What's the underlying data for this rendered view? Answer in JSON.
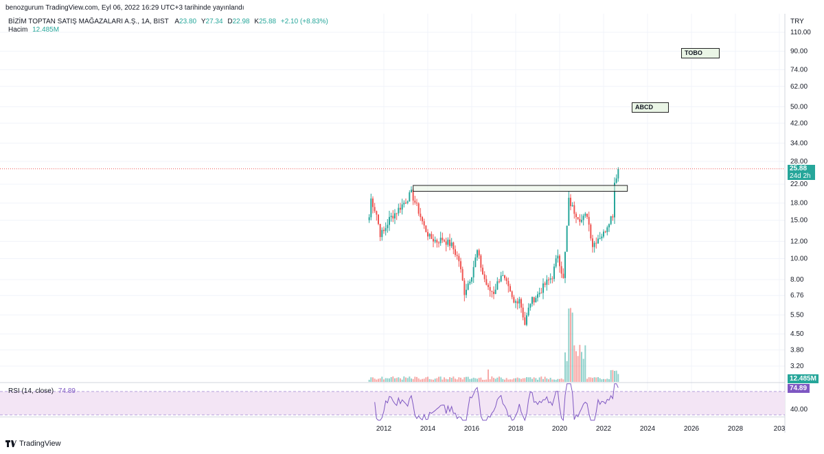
{
  "header": {
    "published": "benozgurum TradingView.com, Eyl 06, 2022 16:29 UTC+3 tarihinde yayınlandı",
    "symbol": "BİZİM TOPTAN SATIŞ MAĞAZALARI A.Ş., 1A, BIST",
    "o_label": "A",
    "o_value": "23.80",
    "h_label": "Y",
    "h_value": "27.34",
    "l_label": "D",
    "l_value": "22.98",
    "c_label": "K",
    "c_value": "25.88",
    "change": "+2.10 (+8.83%)",
    "volume_label": "Hacim",
    "volume_value": "12.485M"
  },
  "price_axis": {
    "currency": "TRY",
    "ticks": [
      "110.00",
      "90.00",
      "74.00",
      "62.00",
      "50.00",
      "42.00",
      "34.00",
      "28.00",
      "22.00",
      "18.00",
      "15.00",
      "12.00",
      "10.00",
      "8.00",
      "6.76",
      "5.50",
      "4.50",
      "3.80",
      "3.20"
    ]
  },
  "time_axis": {
    "ticks": [
      "2012",
      "2014",
      "2016",
      "2018",
      "2020",
      "2022",
      "2024",
      "2026",
      "2028",
      "203"
    ]
  },
  "last_price": {
    "value": "25.88",
    "countdown": "24d 2h"
  },
  "volume_tag": "12.485M",
  "rsi": {
    "label": "RSI (14, close)",
    "value": "74.89",
    "axis_tick": "40.00"
  },
  "annotations": {
    "box1": "TOBO",
    "box2": "ABCD"
  },
  "footer": {
    "brand": "TradingView"
  },
  "colors": {
    "up": "#26a69a",
    "down": "#ef5350",
    "rsi_line": "#7e57c2",
    "rsi_bg": "#f3e5f5",
    "last_tag": "#26a69a"
  },
  "chart_data": {
    "type": "candlestick",
    "scale": "log",
    "interval": "1 month",
    "close_path": [
      [
        "2011-05",
        15.5
      ],
      [
        "2011-06",
        18.8
      ],
      [
        "2011-09",
        16.0
      ],
      [
        "2011-11",
        13.0
      ],
      [
        "2012-01",
        13.3
      ],
      [
        "2012-04",
        15.2
      ],
      [
        "2012-08",
        16.5
      ],
      [
        "2013-01",
        18.5
      ],
      [
        "2013-04",
        20.0
      ],
      [
        "2013-08",
        16.5
      ],
      [
        "2013-11",
        14.0
      ],
      [
        "2014-02",
        12.5
      ],
      [
        "2014-06",
        12.0
      ],
      [
        "2014-09",
        12.3
      ],
      [
        "2015-02",
        11.5
      ],
      [
        "2015-06",
        9.8
      ],
      [
        "2015-09",
        7.0
      ],
      [
        "2016-01",
        8.5
      ],
      [
        "2016-04",
        10.8
      ],
      [
        "2016-07",
        8.5
      ],
      [
        "2016-10",
        7.2
      ],
      [
        "2017-01",
        7.0
      ],
      [
        "2017-05",
        8.5
      ],
      [
        "2017-08",
        7.6
      ],
      [
        "2017-12",
        6.2
      ],
      [
        "2018-03",
        6.6
      ],
      [
        "2018-06",
        5.0
      ],
      [
        "2018-09",
        6.3
      ],
      [
        "2019-01",
        6.8
      ],
      [
        "2019-05",
        7.6
      ],
      [
        "2019-09",
        8.3
      ],
      [
        "2019-12",
        10.5
      ],
      [
        "2020-03",
        8.0
      ],
      [
        "2020-06",
        18.5
      ],
      [
        "2020-09",
        16.5
      ],
      [
        "2021-01",
        15.0
      ],
      [
        "2021-04",
        16.0
      ],
      [
        "2021-07",
        11.5
      ],
      [
        "2021-10",
        12.5
      ],
      [
        "2022-01",
        13.0
      ],
      [
        "2022-04",
        15.0
      ],
      [
        "2022-06",
        16.0
      ],
      [
        "2022-07",
        22.5
      ],
      [
        "2022-09",
        25.88
      ]
    ],
    "volume_peak_date": "2020-07",
    "rsi_last": 74.89
  }
}
